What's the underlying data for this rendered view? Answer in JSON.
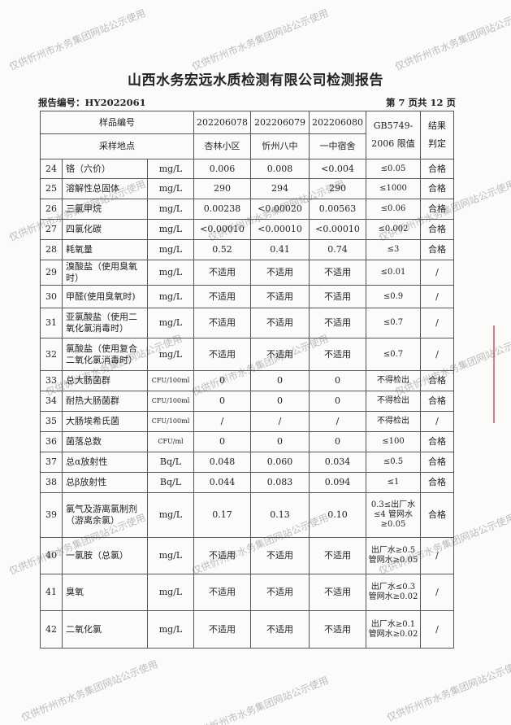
{
  "title": "山西水务宏远水质检测有限公司检测报告",
  "report_no": "报告编号：HY2022061",
  "page_info": "第 7 页共 12 页",
  "header": {
    "sample_no_label": "样品编号",
    "site_label": "采样地点",
    "samples": [
      "202206078",
      "202206079",
      "202206080"
    ],
    "sites": [
      "杏林小区",
      "忻州八中",
      "一中宿舍"
    ],
    "limit_label_1": "GB5749-",
    "limit_label_2": "2006 限值",
    "result_label_1": "结果",
    "result_label_2": "判定"
  },
  "rows": [
    {
      "no": "24",
      "name": "铬（六价）",
      "unit": "mg/L",
      "v": [
        "0.006",
        "0.008",
        "<0.004"
      ],
      "limit": "≤0.05",
      "result": "合格"
    },
    {
      "no": "25",
      "name": "溶解性总固体",
      "unit": "mg/L",
      "v": [
        "290",
        "294",
        "290"
      ],
      "limit": "≤1000",
      "result": "合格"
    },
    {
      "no": "26",
      "name": "三氯甲烷",
      "unit": "mg/L",
      "v": [
        "0.00238",
        "<0.00020",
        "0.00563"
      ],
      "limit": "≤0.06",
      "result": "合格"
    },
    {
      "no": "27",
      "name": "四氯化碳",
      "unit": "mg/L",
      "v": [
        "<0.00010",
        "<0.00010",
        "<0.00010"
      ],
      "limit": "≤0.002",
      "result": "合格"
    },
    {
      "no": "28",
      "name": "耗氧量",
      "unit": "mg/L",
      "v": [
        "0.52",
        "0.41",
        "0.74"
      ],
      "limit": "≤3",
      "result": "合格"
    },
    {
      "no": "29",
      "name": "溴酸盐（使用臭氧时）",
      "unit": "mg/L",
      "v": [
        "不适用",
        "不适用",
        "不适用"
      ],
      "limit": "≤0.01",
      "result": "/"
    },
    {
      "no": "30",
      "name": "甲醛(使用臭氧时)",
      "unit": "mg/L",
      "v": [
        "不适用",
        "不适用",
        "不适用"
      ],
      "limit": "≤0.9",
      "result": "/"
    },
    {
      "no": "31",
      "name": "亚氯酸盐（使用二氧化氯消毒时）",
      "unit": "mg/L",
      "v": [
        "不适用",
        "不适用",
        "不适用"
      ],
      "limit": "≤0.7",
      "result": "/"
    },
    {
      "no": "32",
      "name": "氯酸盐（使用复合二氧化氯消毒时）",
      "unit": "mg/L",
      "v": [
        "不适用",
        "不适用",
        "不适用"
      ],
      "limit": "≤0.7",
      "result": "/"
    },
    {
      "no": "33",
      "name": "总大肠菌群",
      "unit": "CFU/100ml",
      "v": [
        "0",
        "0",
        "0"
      ],
      "limit": "不得检出",
      "result": "合格"
    },
    {
      "no": "34",
      "name": "耐热大肠菌群",
      "unit": "CFU/100ml",
      "v": [
        "0",
        "0",
        "0"
      ],
      "limit": "不得检出",
      "result": "合格"
    },
    {
      "no": "35",
      "name": "大肠埃希氏菌",
      "unit": "CFU/100ml",
      "v": [
        "/",
        "/",
        "/"
      ],
      "limit": "不得检出",
      "result": "/"
    },
    {
      "no": "36",
      "name": "菌落总数",
      "unit": "CFU/ml",
      "v": [
        "0",
        "0",
        "0"
      ],
      "limit": "≤100",
      "result": "合格"
    },
    {
      "no": "37",
      "name": "总α放射性",
      "unit": "Bq/L",
      "v": [
        "0.048",
        "0.060",
        "0.034"
      ],
      "limit": "≤0.5",
      "result": "合格"
    },
    {
      "no": "38",
      "name": "总β放射性",
      "unit": "Bq/L",
      "v": [
        "0.044",
        "0.083",
        "0.094"
      ],
      "limit": "≤1",
      "result": "合格"
    },
    {
      "no": "39",
      "name": "氯气及游离氯制剂（游离余氯）",
      "unit": "mg/L",
      "v": [
        "0.17",
        "0.13",
        "0.10"
      ],
      "limit": "0.3≤出厂水≤4 管网水≥0.05",
      "result": "合格"
    },
    {
      "no": "40",
      "name": "一氯胺（总氯）",
      "unit": "mg/L",
      "v": [
        "不适用",
        "不适用",
        "不适用"
      ],
      "limit": "出厂水≥0.5 管网水≥0.05",
      "result": "/"
    },
    {
      "no": "41",
      "name": "臭氧",
      "unit": "mg/L",
      "v": [
        "不适用",
        "不适用",
        "不适用"
      ],
      "limit": "出厂水≤0.3 管网水≥0.02",
      "result": "/"
    },
    {
      "no": "42",
      "name": "二氧化氯",
      "unit": "mg/L",
      "v": [
        "不适用",
        "不适用",
        "不适用"
      ],
      "limit": "出厂水≥0.1 管网水≥0.02",
      "result": "/"
    }
  ],
  "watermark": "仅供忻州市水务集团网站公示使用",
  "stamp_color": "#d22832"
}
